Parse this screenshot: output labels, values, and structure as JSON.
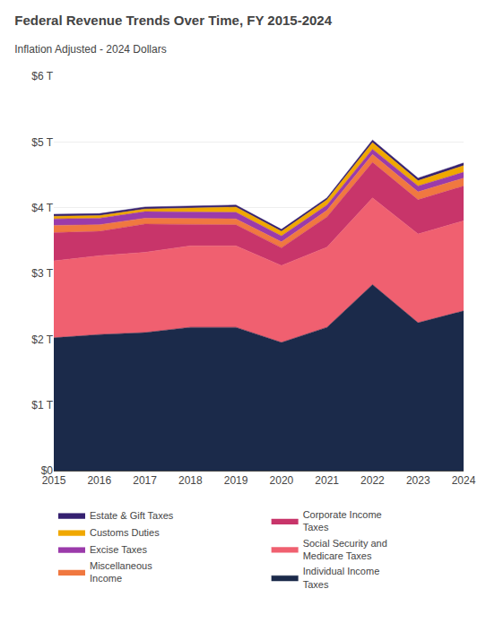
{
  "chart_data": {
    "type": "area",
    "stacked": true,
    "title": "Federal Revenue Trends Over Time, FY 2015-2024",
    "subtitle": "Inflation Adjusted - 2024 Dollars",
    "x": [
      2015,
      2016,
      2017,
      2018,
      2019,
      2020,
      2021,
      2022,
      2023,
      2024
    ],
    "series": [
      {
        "name": "Individual Income\nTaxes",
        "color": "#1B2A4A",
        "values": [
          2020000000000.0,
          2070000000000.0,
          2100000000000.0,
          2180000000000.0,
          2180000000000.0,
          1950000000000.0,
          2180000000000.0,
          2830000000000.0,
          2250000000000.0,
          2430000000000.0
        ]
      },
      {
        "name": "Social Security and\nMedicare Taxes",
        "color": "#F06070",
        "values": [
          1170000000000.0,
          1200000000000.0,
          1220000000000.0,
          1240000000000.0,
          1240000000000.0,
          1170000000000.0,
          1220000000000.0,
          1320000000000.0,
          1350000000000.0,
          1370000000000.0
        ]
      },
      {
        "name": "Corporate Income\nTaxes",
        "color": "#C8356A",
        "values": [
          430000000000.0,
          370000000000.0,
          430000000000.0,
          320000000000.0,
          320000000000.0,
          270000000000.0,
          460000000000.0,
          540000000000.0,
          520000000000.0,
          530000000000.0
        ]
      },
      {
        "name": "Miscellaneous\nIncome",
        "color": "#F07840",
        "values": [
          110000000000.0,
          100000000000.0,
          90000000000.0,
          90000000000.0,
          90000000000.0,
          90000000000.0,
          100000000000.0,
          120000000000.0,
          120000000000.0,
          120000000000.0
        ]
      },
      {
        "name": "Excise Taxes",
        "color": "#9B3BAA",
        "values": [
          100000000000.0,
          100000000000.0,
          100000000000.0,
          100000000000.0,
          100000000000.0,
          90000000000.0,
          80000000000.0,
          80000000000.0,
          90000000000.0,
          90000000000.0
        ]
      },
      {
        "name": "Customs Duties",
        "color": "#F0A800",
        "values": [
          40000000000.0,
          40000000000.0,
          40000000000.0,
          60000000000.0,
          80000000000.0,
          70000000000.0,
          80000000000.0,
          100000000000.0,
          80000000000.0,
          100000000000.0
        ]
      },
      {
        "name": "Estate & Gift Taxes",
        "color": "#352070",
        "values": [
          30000000000.0,
          30000000000.0,
          30000000000.0,
          30000000000.0,
          30000000000.0,
          30000000000.0,
          30000000000.0,
          40000000000.0,
          40000000000.0,
          40000000000.0
        ]
      }
    ],
    "xlim": [
      2015,
      2024
    ],
    "xticks": [
      2015,
      2016,
      2017,
      2018,
      2019,
      2020,
      2021,
      2022,
      2023,
      2024
    ],
    "ylim": [
      0,
      6000000000000.0
    ],
    "yticks": [
      {
        "value": 0,
        "label": "$0"
      },
      {
        "value": 1000000000000.0,
        "label": "$1 T"
      },
      {
        "value": 2000000000000.0,
        "label": "$2 T"
      },
      {
        "value": 3000000000000.0,
        "label": "$3 T"
      },
      {
        "value": 4000000000000.0,
        "label": "$4 T"
      },
      {
        "value": 5000000000000.0,
        "label": "$5 T"
      },
      {
        "value": 6000000000000.0,
        "label": "$6 T"
      }
    ],
    "grid": true,
    "legend": "bottom"
  }
}
